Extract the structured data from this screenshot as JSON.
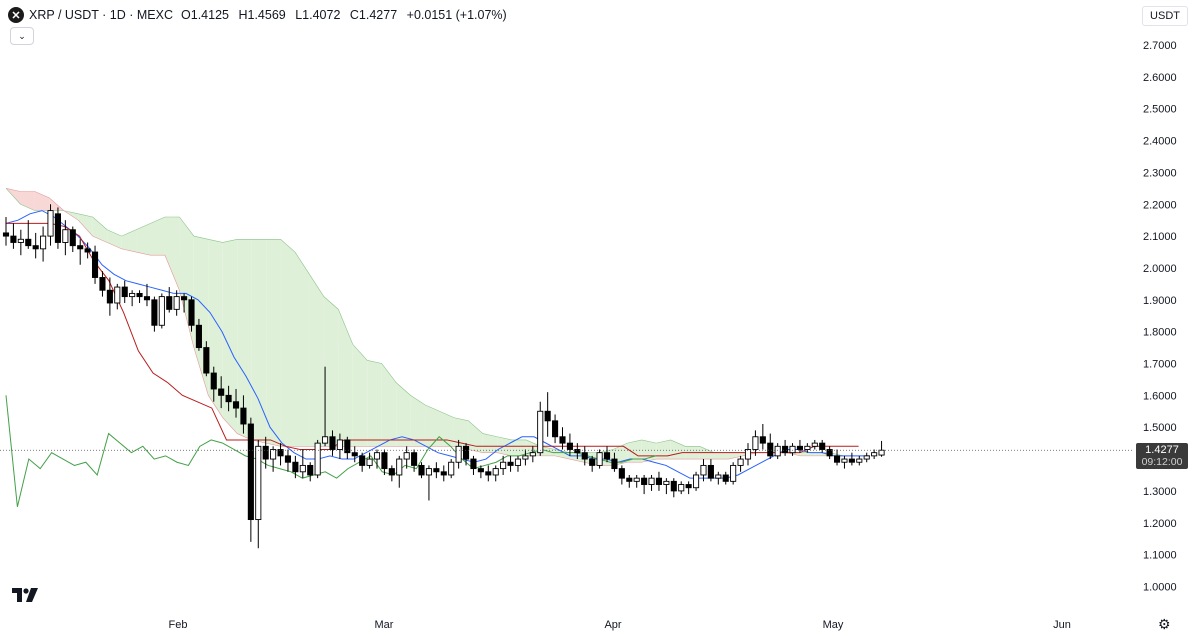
{
  "header": {
    "symbol": "XRP / USDT · 1D · MEXC",
    "open_label": "O",
    "open": "1.4125",
    "high_label": "H",
    "high": "1.4569",
    "low_label": "L",
    "low": "1.4072",
    "close_label": "C",
    "close": "1.4277",
    "change": "+0.0151 (+1.07%)",
    "collapse_icon": "chevron-down-icon"
  },
  "currency_button": "USDT",
  "last_price": {
    "value": "1.4277",
    "countdown": "09:12:00"
  },
  "logo_text": "TV",
  "colors": {
    "bull": "#ffffff",
    "bear": "#000000",
    "tenkan": "#2962ff",
    "kijun": "#b71c1c",
    "lagging": "#43a047",
    "cloud_bear": "#f8d7d7",
    "cloud_bull": "#dff0d8"
  },
  "chart_data": {
    "type": "candlestick",
    "xlabels": [
      "Feb",
      "Mar",
      "Apr",
      "May",
      "Jun"
    ],
    "ylabels": [
      "2.7000",
      "2.6000",
      "2.5000",
      "2.4000",
      "2.3000",
      "2.2000",
      "2.1000",
      "2.0000",
      "1.9000",
      "1.8000",
      "1.7000",
      "1.6000",
      "1.5000",
      "1.4000",
      "1.3000",
      "1.2000",
      "1.1000",
      "1.0000"
    ],
    "ylim": [
      0.95,
      2.75
    ],
    "indicator": "Ichimoku Cloud",
    "candles": [
      [
        2.11,
        2.16,
        2.07,
        2.1
      ],
      [
        2.1,
        2.14,
        2.06,
        2.08
      ],
      [
        2.08,
        2.12,
        2.04,
        2.09
      ],
      [
        2.09,
        2.15,
        2.06,
        2.07
      ],
      [
        2.07,
        2.11,
        2.03,
        2.06
      ],
      [
        2.06,
        2.13,
        2.02,
        2.1
      ],
      [
        2.1,
        2.2,
        2.07,
        2.18
      ],
      [
        2.17,
        2.19,
        2.06,
        2.08
      ],
      [
        2.08,
        2.15,
        2.04,
        2.12
      ],
      [
        2.12,
        2.13,
        2.05,
        2.07
      ],
      [
        2.07,
        2.09,
        2.01,
        2.06
      ],
      [
        2.06,
        2.08,
        2.03,
        2.05
      ],
      [
        2.05,
        2.07,
        1.95,
        1.97
      ],
      [
        1.97,
        1.99,
        1.91,
        1.93
      ],
      [
        1.93,
        1.97,
        1.85,
        1.89
      ],
      [
        1.89,
        1.95,
        1.87,
        1.94
      ],
      [
        1.94,
        1.96,
        1.89,
        1.91
      ],
      [
        1.91,
        1.93,
        1.88,
        1.92
      ],
      [
        1.92,
        1.93,
        1.89,
        1.91
      ],
      [
        1.91,
        1.95,
        1.88,
        1.9
      ],
      [
        1.9,
        1.91,
        1.8,
        1.82
      ],
      [
        1.82,
        1.92,
        1.81,
        1.91
      ],
      [
        1.91,
        1.94,
        1.86,
        1.87
      ],
      [
        1.87,
        1.93,
        1.85,
        1.91
      ],
      [
        1.91,
        1.92,
        1.86,
        1.9
      ],
      [
        1.9,
        1.91,
        1.8,
        1.82
      ],
      [
        1.82,
        1.84,
        1.74,
        1.75
      ],
      [
        1.75,
        1.77,
        1.66,
        1.67
      ],
      [
        1.67,
        1.69,
        1.58,
        1.62
      ],
      [
        1.62,
        1.66,
        1.56,
        1.6
      ],
      [
        1.6,
        1.63,
        1.55,
        1.58
      ],
      [
        1.58,
        1.62,
        1.53,
        1.56
      ],
      [
        1.56,
        1.6,
        1.48,
        1.51
      ],
      [
        1.51,
        1.53,
        1.14,
        1.21
      ],
      [
        1.21,
        1.46,
        1.12,
        1.44
      ],
      [
        1.44,
        1.47,
        1.37,
        1.4
      ],
      [
        1.4,
        1.44,
        1.36,
        1.43
      ],
      [
        1.43,
        1.45,
        1.38,
        1.41
      ],
      [
        1.41,
        1.43,
        1.36,
        1.39
      ],
      [
        1.39,
        1.41,
        1.34,
        1.36
      ],
      [
        1.36,
        1.43,
        1.34,
        1.38
      ],
      [
        1.38,
        1.39,
        1.33,
        1.35
      ],
      [
        1.35,
        1.46,
        1.34,
        1.45
      ],
      [
        1.45,
        1.69,
        1.44,
        1.47
      ],
      [
        1.47,
        1.49,
        1.41,
        1.43
      ],
      [
        1.43,
        1.48,
        1.4,
        1.46
      ],
      [
        1.46,
        1.47,
        1.4,
        1.42
      ],
      [
        1.42,
        1.44,
        1.39,
        1.41
      ],
      [
        1.41,
        1.42,
        1.36,
        1.38
      ],
      [
        1.38,
        1.42,
        1.37,
        1.4
      ],
      [
        1.4,
        1.43,
        1.37,
        1.42
      ],
      [
        1.42,
        1.43,
        1.35,
        1.37
      ],
      [
        1.37,
        1.38,
        1.33,
        1.35
      ],
      [
        1.35,
        1.41,
        1.31,
        1.4
      ],
      [
        1.4,
        1.44,
        1.37,
        1.42
      ],
      [
        1.42,
        1.43,
        1.36,
        1.38
      ],
      [
        1.38,
        1.39,
        1.34,
        1.35
      ],
      [
        1.35,
        1.38,
        1.27,
        1.37
      ],
      [
        1.37,
        1.39,
        1.34,
        1.36
      ],
      [
        1.36,
        1.38,
        1.33,
        1.35
      ],
      [
        1.35,
        1.4,
        1.34,
        1.39
      ],
      [
        1.39,
        1.46,
        1.37,
        1.44
      ],
      [
        1.44,
        1.45,
        1.38,
        1.4
      ],
      [
        1.4,
        1.41,
        1.35,
        1.37
      ],
      [
        1.37,
        1.38,
        1.34,
        1.36
      ],
      [
        1.36,
        1.38,
        1.33,
        1.35
      ],
      [
        1.35,
        1.38,
        1.33,
        1.37
      ],
      [
        1.37,
        1.41,
        1.35,
        1.39
      ],
      [
        1.39,
        1.41,
        1.36,
        1.38
      ],
      [
        1.38,
        1.41,
        1.36,
        1.4
      ],
      [
        1.4,
        1.43,
        1.38,
        1.41
      ],
      [
        1.41,
        1.44,
        1.39,
        1.42
      ],
      [
        1.42,
        1.58,
        1.41,
        1.55
      ],
      [
        1.55,
        1.61,
        1.47,
        1.52
      ],
      [
        1.52,
        1.54,
        1.45,
        1.47
      ],
      [
        1.47,
        1.5,
        1.43,
        1.45
      ],
      [
        1.45,
        1.48,
        1.41,
        1.43
      ],
      [
        1.43,
        1.45,
        1.4,
        1.42
      ],
      [
        1.42,
        1.44,
        1.38,
        1.4
      ],
      [
        1.4,
        1.41,
        1.36,
        1.38
      ],
      [
        1.38,
        1.43,
        1.37,
        1.42
      ],
      [
        1.42,
        1.44,
        1.39,
        1.4
      ],
      [
        1.4,
        1.42,
        1.36,
        1.37
      ],
      [
        1.37,
        1.38,
        1.32,
        1.34
      ],
      [
        1.34,
        1.35,
        1.31,
        1.33
      ],
      [
        1.33,
        1.35,
        1.31,
        1.34
      ],
      [
        1.34,
        1.35,
        1.29,
        1.32
      ],
      [
        1.32,
        1.35,
        1.3,
        1.34
      ],
      [
        1.34,
        1.36,
        1.3,
        1.32
      ],
      [
        1.32,
        1.34,
        1.29,
        1.33
      ],
      [
        1.33,
        1.34,
        1.28,
        1.3
      ],
      [
        1.3,
        1.33,
        1.29,
        1.32
      ],
      [
        1.32,
        1.33,
        1.29,
        1.31
      ],
      [
        1.31,
        1.36,
        1.3,
        1.35
      ],
      [
        1.35,
        1.4,
        1.33,
        1.38
      ],
      [
        1.38,
        1.4,
        1.33,
        1.34
      ],
      [
        1.34,
        1.36,
        1.32,
        1.35
      ],
      [
        1.35,
        1.36,
        1.32,
        1.33
      ],
      [
        1.33,
        1.39,
        1.32,
        1.38
      ],
      [
        1.38,
        1.41,
        1.36,
        1.4
      ],
      [
        1.4,
        1.45,
        1.38,
        1.43
      ],
      [
        1.43,
        1.49,
        1.41,
        1.47
      ],
      [
        1.47,
        1.51,
        1.43,
        1.45
      ],
      [
        1.45,
        1.48,
        1.4,
        1.41
      ],
      [
        1.41,
        1.45,
        1.4,
        1.44
      ],
      [
        1.44,
        1.46,
        1.41,
        1.42
      ],
      [
        1.42,
        1.45,
        1.41,
        1.44
      ],
      [
        1.44,
        1.46,
        1.42,
        1.43
      ],
      [
        1.43,
        1.45,
        1.42,
        1.44
      ],
      [
        1.44,
        1.46,
        1.43,
        1.45
      ],
      [
        1.45,
        1.46,
        1.42,
        1.43
      ],
      [
        1.43,
        1.44,
        1.4,
        1.41
      ],
      [
        1.41,
        1.43,
        1.38,
        1.39
      ],
      [
        1.39,
        1.41,
        1.37,
        1.4
      ],
      [
        1.4,
        1.42,
        1.38,
        1.39
      ],
      [
        1.39,
        1.41,
        1.38,
        1.4
      ],
      [
        1.4,
        1.42,
        1.39,
        1.41
      ],
      [
        1.41,
        1.43,
        1.4,
        1.42
      ],
      [
        1.4125,
        1.4569,
        1.4072,
        1.4277
      ]
    ],
    "tenkan": [
      2.14,
      2.15,
      2.17,
      2.18,
      2.16,
      2.13,
      2.1,
      2.06,
      2.01,
      1.98,
      1.96,
      1.95,
      1.94,
      1.93,
      1.92,
      1.92,
      1.9,
      1.86,
      1.8,
      1.72,
      1.66,
      1.59,
      1.5,
      1.45,
      1.42,
      1.4,
      1.4,
      1.41,
      1.4,
      1.4,
      1.42,
      1.44,
      1.46,
      1.47,
      1.46,
      1.44,
      1.42,
      1.41,
      1.4,
      1.39,
      1.4,
      1.43,
      1.45,
      1.47,
      1.47,
      1.45,
      1.43,
      1.41,
      1.41,
      1.4,
      1.4,
      1.39,
      1.4,
      1.4,
      1.39,
      1.38,
      1.36,
      1.34,
      1.34,
      1.34,
      1.34,
      1.35,
      1.37,
      1.39,
      1.41,
      1.43,
      1.43,
      1.42,
      1.42,
      1.41,
      1.41,
      1.41,
      1.41
    ],
    "kijun": [
      2.14,
      2.14,
      2.14,
      2.14,
      2.13,
      2.1,
      2.02,
      1.96,
      1.86,
      1.74,
      1.67,
      1.64,
      1.6,
      1.58,
      1.56,
      1.46,
      1.46,
      1.46,
      1.46,
      1.44,
      1.43,
      1.43,
      1.43,
      1.46,
      1.46,
      1.46,
      1.46,
      1.46,
      1.46,
      1.46,
      1.46,
      1.45,
      1.44,
      1.44,
      1.44,
      1.44,
      1.44,
      1.44,
      1.44,
      1.44,
      1.44,
      1.44,
      1.44,
      1.41,
      1.41,
      1.41,
      1.42,
      1.42,
      1.42,
      1.42,
      1.42,
      1.42,
      1.42,
      1.42,
      1.42,
      1.44,
      1.44,
      1.44,
      1.44
    ],
    "lagging": [
      1.6,
      1.25,
      1.4,
      1.37,
      1.42,
      1.4,
      1.38,
      1.39,
      1.35,
      1.48,
      1.45,
      1.42,
      1.44,
      1.4,
      1.41,
      1.39,
      1.38,
      1.44,
      1.46,
      1.45,
      1.43,
      1.41,
      1.4,
      1.38,
      1.37,
      1.36,
      1.34,
      1.35,
      1.36,
      1.34,
      1.37,
      1.39,
      1.41,
      1.36,
      1.35,
      1.38,
      1.37,
      1.43,
      1.47,
      1.44,
      1.4,
      1.37,
      1.38,
      1.39,
      1.41,
      1.41,
      1.42,
      1.43,
      1.42,
      1.42,
      1.42,
      1.41,
      1.4,
      1.39,
      1.39,
      1.4,
      1.4,
      1.41
    ],
    "span_a": [
      2.25,
      2.2,
      2.18,
      2.18,
      2.18,
      2.17,
      2.16,
      2.12,
      2.1,
      2.12,
      2.14,
      2.16,
      2.16,
      2.1,
      2.09,
      2.08,
      2.09,
      2.09,
      2.09,
      2.09,
      2.05,
      1.98,
      1.91,
      1.87,
      1.76,
      1.71,
      1.7,
      1.64,
      1.6,
      1.57,
      1.55,
      1.53,
      1.52,
      1.48,
      1.47,
      1.46,
      1.46,
      1.44,
      1.43,
      1.42,
      1.42,
      1.42,
      1.43,
      1.45,
      1.46,
      1.45,
      1.46,
      1.44,
      1.44,
      1.42,
      1.42,
      1.42,
      1.42,
      1.42,
      1.42,
      1.42,
      1.42,
      1.42,
      1.41,
      1.41
    ],
    "span_b": [
      2.25,
      2.24,
      2.24,
      2.22,
      2.18,
      2.15,
      2.1,
      2.08,
      2.06,
      2.05,
      2.04,
      2.04,
      1.93,
      1.75,
      1.6,
      1.53,
      1.48,
      1.46,
      1.45,
      1.44,
      1.44,
      1.44,
      1.44,
      1.44,
      1.44,
      1.44,
      1.44,
      1.44,
      1.44,
      1.44,
      1.44,
      1.44,
      1.43,
      1.42,
      1.42,
      1.41,
      1.41,
      1.41,
      1.41,
      1.4,
      1.39,
      1.38,
      1.38,
      1.39,
      1.39,
      1.4,
      1.4,
      1.4,
      1.4,
      1.4,
      1.4,
      1.41,
      1.42,
      1.42,
      1.42,
      1.41,
      1.41,
      1.41,
      1.41,
      1.41
    ]
  }
}
